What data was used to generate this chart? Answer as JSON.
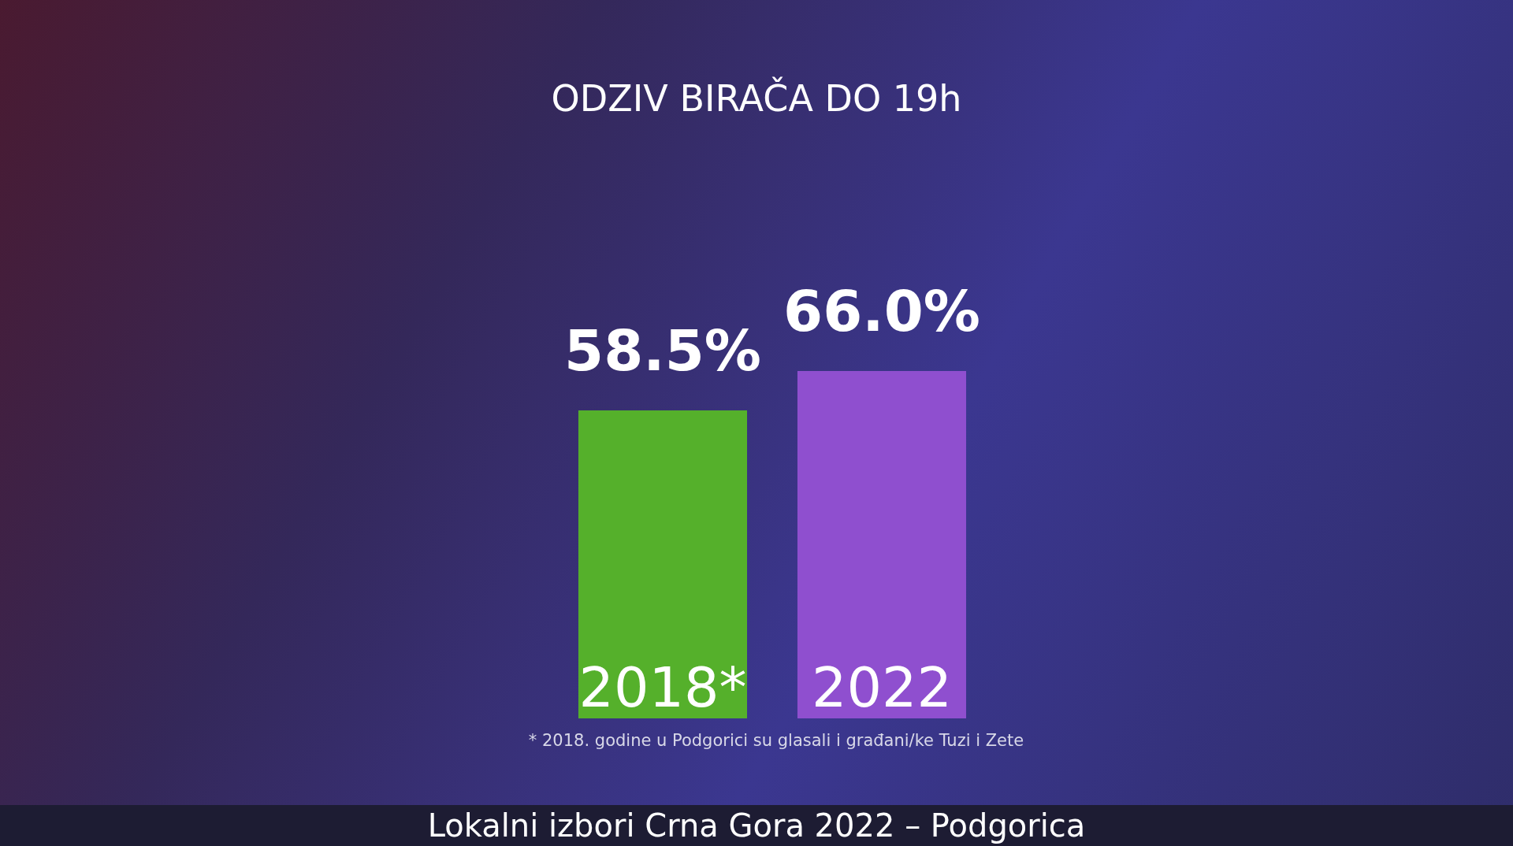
{
  "chart_data": {
    "type": "bar",
    "title": "ODZIV BIRAČA DO 19h",
    "categories": [
      "2018*",
      "2022"
    ],
    "values": [
      58.5,
      66.0
    ],
    "colors": [
      "#55b02b",
      "#8f4fcf"
    ],
    "value_labels": [
      "58.5%",
      "66.0%"
    ],
    "annotations": [
      "* 2018. godine u Podgorici su glasali i građani/ke Tuzi i Zete",
      "Lokalni izbori Crna Gora 2022 – Podgorica"
    ]
  }
}
